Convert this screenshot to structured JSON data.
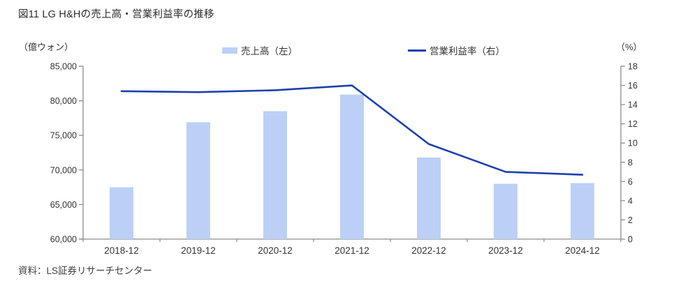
{
  "title": "図11 LG H&Hの売上高・営業利益率の推移",
  "source": "資料：LS証券リサーチセンター",
  "legend": {
    "bar_label": "売上高（左）",
    "line_label": "営業利益率（右）"
  },
  "axes": {
    "left_unit": "（億ウォン）",
    "right_unit": "（%）"
  },
  "colors": {
    "bar": "#bcd0f7",
    "line": "#1c40ac",
    "axis": "#8c8c8c",
    "tick_text": "#333333"
  },
  "chart_data": {
    "type": "combo",
    "title": "図11 LG H&Hの売上高・営業利益率の推移",
    "categories": [
      "2018-12",
      "2019-12",
      "2020-12",
      "2021-12",
      "2022-12",
      "2023-12",
      "2024-12"
    ],
    "series": [
      {
        "name": "売上高（左）",
        "type": "bar",
        "axis": "left",
        "color": "#bcd0f7",
        "values": [
          67500,
          76900,
          78500,
          80900,
          71800,
          68000,
          68100
        ]
      },
      {
        "name": "営業利益率（右）",
        "type": "line",
        "axis": "right",
        "color": "#1c40ac",
        "values": [
          15.4,
          15.3,
          15.5,
          16.0,
          9.9,
          7.0,
          6.7
        ]
      }
    ],
    "left_axis": {
      "label": "（億ウォン）",
      "min": 60000,
      "max": 85000,
      "step": 5000
    },
    "right_axis": {
      "label": "（%）",
      "min": 0,
      "max": 18,
      "step": 2
    },
    "grid": false,
    "legend_position": "top"
  }
}
